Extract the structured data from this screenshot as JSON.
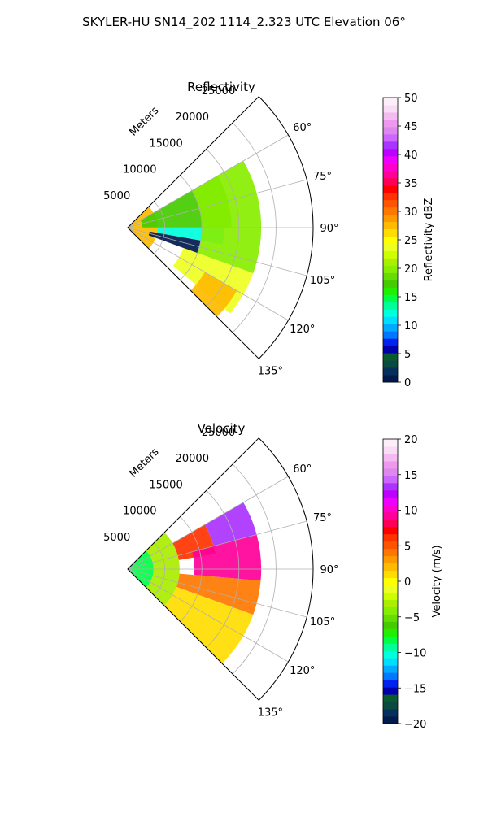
{
  "figure": {
    "suptitle": "SKYLER-HU  SN14_202  1114_2.323 UTC Elevation 06°",
    "background": "#ffffff",
    "grid_color": "#b0b0b0"
  },
  "chart_data": [
    {
      "type": "heatmap",
      "subtype": "polar-sector-ppi",
      "title": "Reflectivity",
      "radial_label": "Meters",
      "r_ticks": [
        5000,
        10000,
        15000,
        20000,
        25000
      ],
      "r_tick_labels": [
        "5000",
        "10000",
        "15000",
        "20000",
        "25000"
      ],
      "rlim": [
        0,
        25000
      ],
      "theta_ticks_deg": [
        60,
        75,
        90,
        105,
        120,
        135
      ],
      "theta_tick_labels": [
        "60°",
        "75°",
        "90°",
        "105°",
        "120°",
        "135°"
      ],
      "theta_range_deg": [
        45,
        135
      ],
      "grid": true,
      "data_extent_m": 18000,
      "colorbar": {
        "label": "Reflectivity dBZ",
        "vmin": 0,
        "vmax": 50,
        "ticks": [
          0,
          5,
          10,
          15,
          20,
          25,
          30,
          35,
          40,
          45,
          50
        ],
        "tick_labels": [
          "0",
          "5",
          "10",
          "15",
          "20",
          "25",
          "30",
          "35",
          "40",
          "45",
          "50"
        ],
        "colors": [
          "#001a4d",
          "#06305c",
          "#0b4a40",
          "#0a5a30",
          "#0000aa",
          "#0022ee",
          "#0077ff",
          "#00aaff",
          "#00ddff",
          "#00ffdd",
          "#00ff99",
          "#00ff44",
          "#22ee00",
          "#44cc00",
          "#66dd00",
          "#88ee00",
          "#aaee00",
          "#ccff00",
          "#eeff22",
          "#ffff00",
          "#ffdd00",
          "#ffbb00",
          "#ff9900",
          "#ff7700",
          "#ff5500",
          "#ff3300",
          "#ff0000",
          "#ff0055",
          "#ff0099",
          "#ff00cc",
          "#ee00ff",
          "#bb00ff",
          "#aa33ff",
          "#cc66ff",
          "#dd88ee",
          "#ee99ee",
          "#f4bbf0",
          "#f9ddf7",
          "#fdeefa"
        ]
      },
      "zones": [
        {
          "r_from_m": 0,
          "r_to_m": 4000,
          "theta_from_deg": 45,
          "theta_to_deg": 135,
          "value_dbz": 27
        },
        {
          "r_from_m": 2000,
          "r_to_m": 14000,
          "theta_from_deg": 60,
          "theta_to_deg": 90,
          "value_dbz": 17
        },
        {
          "r_from_m": 4000,
          "r_to_m": 13000,
          "theta_from_deg": 90,
          "theta_to_deg": 100,
          "value_dbz": 12
        },
        {
          "r_from_m": 3000,
          "r_to_m": 10000,
          "theta_from_deg": 100,
          "theta_to_deg": 110,
          "value_dbz": 0
        },
        {
          "r_from_m": 10000,
          "r_to_m": 18000,
          "theta_from_deg": 60,
          "theta_to_deg": 110,
          "value_dbz": 20
        },
        {
          "r_from_m": 8000,
          "r_to_m": 18000,
          "theta_from_deg": 110,
          "theta_to_deg": 130,
          "value_dbz": 24
        },
        {
          "r_from_m": 12000,
          "r_to_m": 17000,
          "theta_from_deg": 120,
          "theta_to_deg": 135,
          "value_dbz": 28
        }
      ]
    },
    {
      "type": "heatmap",
      "subtype": "polar-sector-ppi",
      "title": "Velocity",
      "radial_label": "Meters",
      "r_ticks": [
        5000,
        10000,
        15000,
        20000,
        25000
      ],
      "r_tick_labels": [
        "5000",
        "10000",
        "15000",
        "20000",
        "25000"
      ],
      "rlim": [
        0,
        25000
      ],
      "theta_ticks_deg": [
        60,
        75,
        90,
        105,
        120,
        135
      ],
      "theta_tick_labels": [
        "60°",
        "75°",
        "90°",
        "105°",
        "120°",
        "135°"
      ],
      "theta_range_deg": [
        45,
        135
      ],
      "grid": true,
      "data_extent_m": 18000,
      "colorbar": {
        "label": "Velocity (m/s)",
        "vmin": -20,
        "vmax": 20,
        "ticks": [
          -20,
          -15,
          -10,
          -5,
          0,
          5,
          10,
          15,
          20
        ],
        "tick_labels": [
          "−20",
          "−15",
          "−10",
          "−5",
          "0",
          "5",
          "10",
          "15",
          "20"
        ],
        "colors": [
          "#001a4d",
          "#06305c",
          "#0b4a40",
          "#0a5a30",
          "#0000aa",
          "#0022ee",
          "#0077ff",
          "#00aaff",
          "#00ddff",
          "#00ffdd",
          "#00ff99",
          "#00ff44",
          "#22ee00",
          "#44cc00",
          "#66dd00",
          "#88ee00",
          "#aaee00",
          "#ccff00",
          "#eeff22",
          "#ffff00",
          "#ffdd00",
          "#ffbb00",
          "#ff9900",
          "#ff7700",
          "#ff5500",
          "#ff3300",
          "#ff0000",
          "#ff0055",
          "#ff0099",
          "#ff00cc",
          "#ee00ff",
          "#bb00ff",
          "#aa33ff",
          "#cc66ff",
          "#dd88ee",
          "#ee99ee",
          "#f4bbf0",
          "#f9ddf7",
          "#fdeefa"
        ]
      },
      "zones": [
        {
          "r_from_m": 0,
          "r_to_m": 3500,
          "theta_from_deg": 45,
          "theta_to_deg": 135,
          "value_ms": -8
        },
        {
          "r_from_m": 3500,
          "r_to_m": 7000,
          "theta_from_deg": 45,
          "theta_to_deg": 135,
          "value_ms": -3
        },
        {
          "r_from_m": 7000,
          "r_to_m": 12000,
          "theta_from_deg": 60,
          "theta_to_deg": 80,
          "value_ms": 6
        },
        {
          "r_from_m": 12000,
          "r_to_m": 18000,
          "theta_from_deg": 60,
          "theta_to_deg": 75,
          "value_ms": 13
        },
        {
          "r_from_m": 9000,
          "r_to_m": 18000,
          "theta_from_deg": 75,
          "theta_to_deg": 95,
          "value_ms": 9
        },
        {
          "r_from_m": 7000,
          "r_to_m": 18000,
          "theta_from_deg": 95,
          "theta_to_deg": 110,
          "value_ms": 4
        },
        {
          "r_from_m": 7000,
          "r_to_m": 18000,
          "theta_from_deg": 110,
          "theta_to_deg": 135,
          "value_ms": 1
        }
      ]
    }
  ]
}
